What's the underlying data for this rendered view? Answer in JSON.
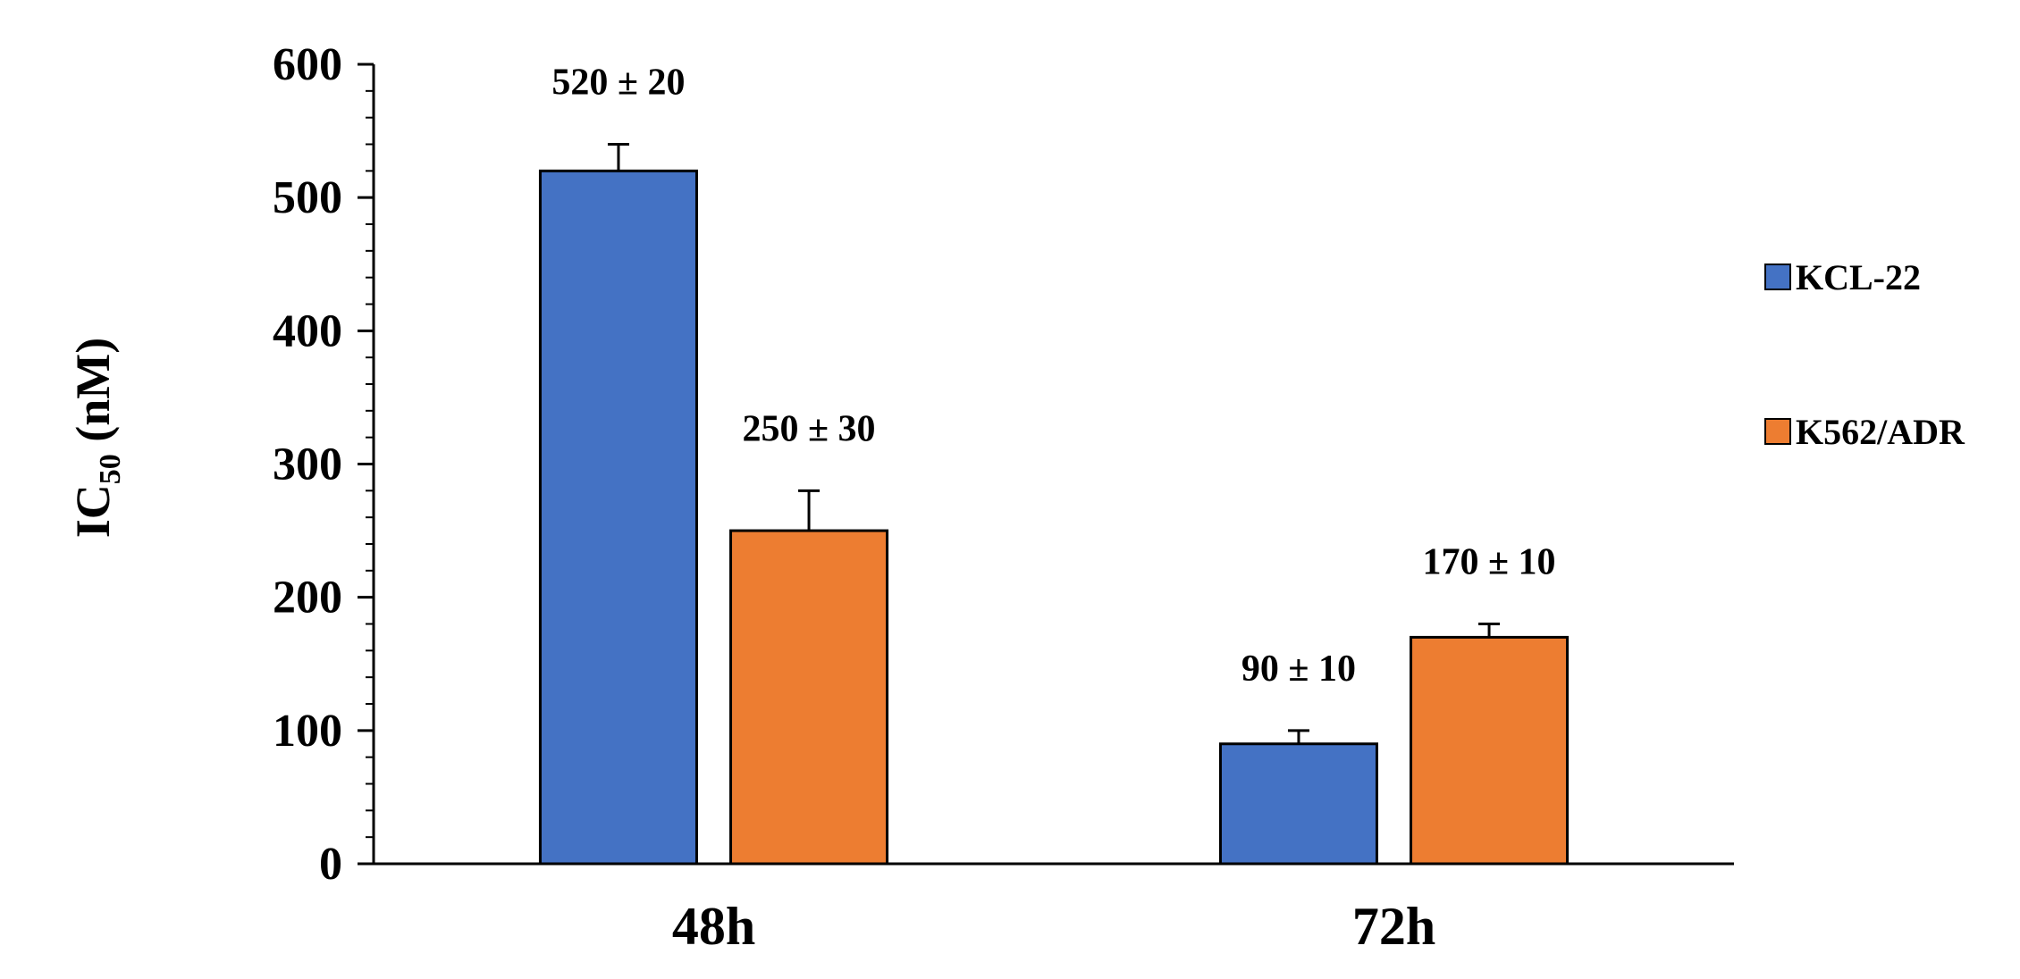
{
  "chart_data": {
    "type": "bar",
    "title": "",
    "xlabel": "",
    "ylabel_main": "IC",
    "ylabel_sub": "50",
    "ylabel_unit": " (nM)",
    "categories": [
      "48h",
      "72h"
    ],
    "ylim": [
      0,
      600
    ],
    "yticks": [
      0,
      100,
      200,
      300,
      400,
      500,
      600
    ],
    "grid": false,
    "legend_position": "right",
    "series": [
      {
        "name": "KCL-22",
        "color": "#4472C4",
        "values": [
          520,
          90
        ],
        "errors": [
          20,
          10
        ],
        "labels": [
          "520 ± 20",
          "90 ± 10"
        ]
      },
      {
        "name": "K562/ADR",
        "color": "#ED7D31",
        "values": [
          250,
          170
        ],
        "errors": [
          30,
          10
        ],
        "labels": [
          "250 ± 30",
          "170 ± 10"
        ]
      }
    ]
  }
}
